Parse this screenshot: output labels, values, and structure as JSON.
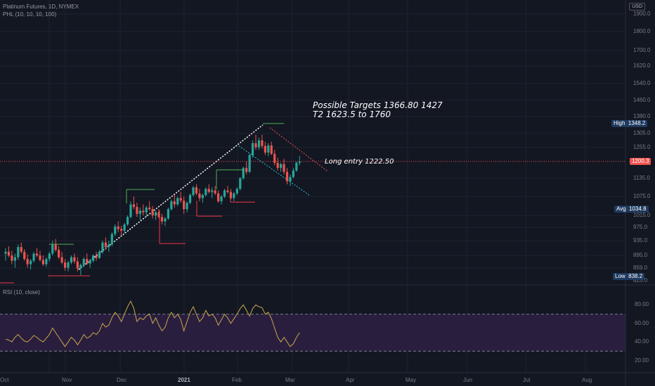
{
  "legend": {
    "symbol": "Platinum Futures, 1D, NYMEX",
    "indicator": "PHL (10, 10, 10, 100)",
    "rsi": "RSI (10, close)"
  },
  "currency": "USD",
  "annotations": {
    "targets_line1": "Possible Targets   1366.80   1427",
    "targets_line2": "T2  1623.5  to 1760",
    "entry": "Long entry 1222.50"
  },
  "price_tags": {
    "high_label": "High",
    "high_value": "1348.2",
    "last_value": "1200.3",
    "avg_label": "Avg",
    "avg_value": "1034.8",
    "low_label": "Low",
    "low_value": "838.2"
  },
  "price_axis": [
    "1900.0",
    "1800.0",
    "1700.0",
    "1620.0",
    "1540.0",
    "1460.0",
    "1380.0",
    "1305.0",
    "1255.0",
    "1135.0",
    "1075.0",
    "1015.0",
    "975.0",
    "935.0",
    "895.0",
    "859.0",
    "825.0"
  ],
  "rsi_axis": [
    "80.00",
    "60.00",
    "40.00",
    "20.00"
  ],
  "time_axis": [
    {
      "label": "Oct",
      "bold": false
    },
    {
      "label": "Nov",
      "bold": false
    },
    {
      "label": "Dec",
      "bold": false
    },
    {
      "label": "2021",
      "bold": true
    },
    {
      "label": "Feb",
      "bold": false
    },
    {
      "label": "Mar",
      "bold": false
    },
    {
      "label": "Apr",
      "bold": false
    },
    {
      "label": "May",
      "bold": false
    },
    {
      "label": "Jun",
      "bold": false
    },
    {
      "label": "Jul",
      "bold": false
    },
    {
      "label": "Aug",
      "bold": false
    }
  ],
  "colors": {
    "background": "#131722",
    "up": "#26a69a",
    "down": "#ef5350",
    "level_high": "#4caf50",
    "level_low": "#f23645",
    "rsi_line": "#c9a64a",
    "rsi_band": "#2a1e3f",
    "trendline": "#ffffff",
    "channel_upper": "#ef5350",
    "channel_lower": "#26c6da"
  },
  "chart_data": {
    "type": "candlestick",
    "price_ohlc": [
      [
        900,
        915,
        880,
        905
      ],
      [
        905,
        920,
        890,
        895
      ],
      [
        895,
        908,
        870,
        880
      ],
      [
        880,
        900,
        860,
        890
      ],
      [
        890,
        925,
        882,
        918
      ],
      [
        918,
        930,
        900,
        905
      ],
      [
        905,
        912,
        880,
        885
      ],
      [
        885,
        898,
        860,
        870
      ],
      [
        870,
        885,
        855,
        880
      ],
      [
        880,
        905,
        875,
        900
      ],
      [
        900,
        915,
        890,
        895
      ],
      [
        895,
        908,
        878,
        882
      ],
      [
        882,
        895,
        865,
        870
      ],
      [
        870,
        890,
        862,
        885
      ],
      [
        885,
        905,
        878,
        900
      ],
      [
        900,
        935,
        895,
        925
      ],
      [
        925,
        940,
        905,
        910
      ],
      [
        910,
        920,
        885,
        890
      ],
      [
        890,
        905,
        870,
        875
      ],
      [
        875,
        885,
        852,
        860
      ],
      [
        860,
        880,
        850,
        875
      ],
      [
        875,
        895,
        870,
        890
      ],
      [
        890,
        900,
        872,
        878
      ],
      [
        878,
        890,
        850,
        858
      ],
      [
        858,
        872,
        840,
        868
      ],
      [
        868,
        890,
        862,
        885
      ],
      [
        885,
        900,
        868,
        872
      ],
      [
        872,
        885,
        860,
        880
      ],
      [
        880,
        898,
        875,
        895
      ],
      [
        895,
        905,
        880,
        888
      ],
      [
        888,
        910,
        885,
        905
      ],
      [
        905,
        935,
        900,
        930
      ],
      [
        930,
        945,
        910,
        918
      ],
      [
        918,
        935,
        905,
        925
      ],
      [
        925,
        960,
        920,
        955
      ],
      [
        955,
        985,
        948,
        978
      ],
      [
        978,
        995,
        960,
        970
      ],
      [
        970,
        980,
        950,
        965
      ],
      [
        965,
        990,
        958,
        985
      ],
      [
        985,
        1015,
        980,
        1010
      ],
      [
        1010,
        1060,
        1005,
        1050
      ],
      [
        1050,
        1075,
        1035,
        1042
      ],
      [
        1042,
        1055,
        1010,
        1020
      ],
      [
        1020,
        1040,
        1000,
        1030
      ],
      [
        1030,
        1050,
        1015,
        1025
      ],
      [
        1025,
        1045,
        1010,
        1040
      ],
      [
        1040,
        1060,
        1030,
        1035
      ],
      [
        1035,
        1045,
        1005,
        1015
      ],
      [
        1015,
        1030,
        1000,
        1025
      ],
      [
        1025,
        1035,
        1005,
        1010
      ],
      [
        1010,
        1020,
        985,
        995
      ],
      [
        995,
        1010,
        980,
        1005
      ],
      [
        1005,
        1040,
        1000,
        1035
      ],
      [
        1035,
        1065,
        1030,
        1060
      ],
      [
        1060,
        1080,
        1040,
        1050
      ],
      [
        1050,
        1075,
        1045,
        1070
      ],
      [
        1070,
        1090,
        1055,
        1062
      ],
      [
        1062,
        1075,
        1020,
        1035
      ],
      [
        1035,
        1060,
        1025,
        1055
      ],
      [
        1055,
        1085,
        1050,
        1080
      ],
      [
        1080,
        1110,
        1075,
        1105
      ],
      [
        1105,
        1115,
        1080,
        1085
      ],
      [
        1085,
        1100,
        1060,
        1070
      ],
      [
        1070,
        1085,
        1055,
        1080
      ],
      [
        1080,
        1105,
        1075,
        1100
      ],
      [
        1100,
        1115,
        1085,
        1090
      ],
      [
        1090,
        1105,
        1070,
        1095
      ],
      [
        1095,
        1110,
        1080,
        1085
      ],
      [
        1085,
        1095,
        1055,
        1060
      ],
      [
        1060,
        1080,
        1050,
        1075
      ],
      [
        1075,
        1100,
        1070,
        1095
      ],
      [
        1095,
        1110,
        1085,
        1090
      ],
      [
        1090,
        1100,
        1065,
        1070
      ],
      [
        1070,
        1090,
        1060,
        1085
      ],
      [
        1085,
        1105,
        1080,
        1100
      ],
      [
        1100,
        1140,
        1095,
        1135
      ],
      [
        1135,
        1180,
        1130,
        1175
      ],
      [
        1175,
        1200,
        1150,
        1160
      ],
      [
        1160,
        1230,
        1155,
        1225
      ],
      [
        1225,
        1280,
        1215,
        1270
      ],
      [
        1270,
        1300,
        1245,
        1255
      ],
      [
        1255,
        1290,
        1245,
        1280
      ],
      [
        1280,
        1300,
        1250,
        1260
      ],
      [
        1260,
        1275,
        1225,
        1235
      ],
      [
        1235,
        1270,
        1220,
        1262
      ],
      [
        1262,
        1275,
        1225,
        1230
      ],
      [
        1230,
        1245,
        1185,
        1195
      ],
      [
        1195,
        1215,
        1165,
        1175
      ],
      [
        1175,
        1195,
        1160,
        1190
      ],
      [
        1190,
        1210,
        1150,
        1160
      ],
      [
        1160,
        1175,
        1115,
        1125
      ],
      [
        1125,
        1150,
        1110,
        1140
      ],
      [
        1140,
        1175,
        1135,
        1165
      ],
      [
        1165,
        1200,
        1160,
        1195
      ],
      [
        1195,
        1222,
        1185,
        1200
      ]
    ],
    "levels": [
      {
        "type": "resistance",
        "value": 1060
      },
      {
        "type": "support",
        "value": 990
      },
      {
        "type": "support",
        "value": 950
      },
      {
        "type": "resistance",
        "value": 1110
      },
      {
        "type": "support",
        "value": 1035
      },
      {
        "type": "resistance",
        "value": 1140
      },
      {
        "type": "support",
        "value": 1050
      },
      {
        "type": "resistance",
        "value": 1300
      },
      {
        "type": "support",
        "value": 1115
      }
    ],
    "rsi": [
      43,
      42,
      40,
      45,
      48,
      44,
      41,
      40,
      43,
      47,
      45,
      42,
      40,
      44,
      48,
      55,
      50,
      45,
      40,
      35,
      40,
      45,
      42,
      37,
      42,
      48,
      44,
      46,
      50,
      48,
      52,
      60,
      56,
      58,
      66,
      72,
      68,
      62,
      70,
      78,
      84,
      76,
      62,
      66,
      64,
      68,
      70,
      60,
      66,
      58,
      52,
      56,
      66,
      72,
      66,
      70,
      64,
      52,
      62,
      72,
      78,
      70,
      62,
      66,
      74,
      68,
      70,
      66,
      58,
      64,
      70,
      66,
      60,
      65,
      70,
      76,
      80,
      74,
      68,
      76,
      80,
      78,
      77,
      70,
      72,
      65,
      55,
      45,
      40,
      45,
      40,
      35,
      38,
      45,
      50
    ],
    "price_range": [
      800,
      1950
    ],
    "rsi_range": [
      0,
      100
    ],
    "rsi_bands": [
      30,
      70
    ],
    "trendline": {
      "from": [
        840,
        "Nov"
      ],
      "to": [
        1348,
        "Feb"
      ]
    }
  }
}
